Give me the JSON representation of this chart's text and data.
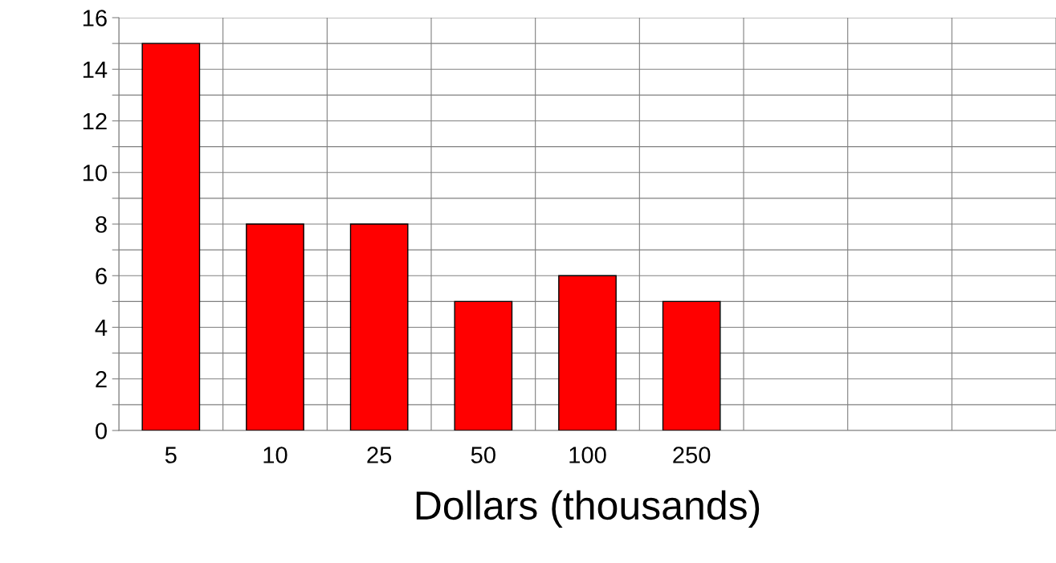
{
  "chart_data": {
    "type": "bar",
    "xlabel": "Dollars (thousands)",
    "categories": [
      "5",
      "10",
      "25",
      "50",
      "100",
      "250",
      null,
      null,
      null
    ],
    "series": [
      {
        "color": "#ff0000",
        "values": [
          15,
          8,
          8,
          5,
          6,
          5,
          null,
          null,
          null
        ]
      }
    ],
    "ylim": [
      0,
      16
    ],
    "yticks": [
      0,
      {
        "value": 1,
        "label": null
      },
      2,
      {
        "value": 3,
        "label": null
      },
      4,
      {
        "value": 5,
        "label": null
      },
      6,
      {
        "value": 7,
        "label": null
      },
      8,
      {
        "value": 9,
        "label": null
      },
      10,
      {
        "value": 11,
        "label": null
      },
      12,
      {
        "value": 13,
        "label": null
      },
      14,
      {
        "value": 15,
        "label": null
      },
      16
    ],
    "grid": true
  }
}
